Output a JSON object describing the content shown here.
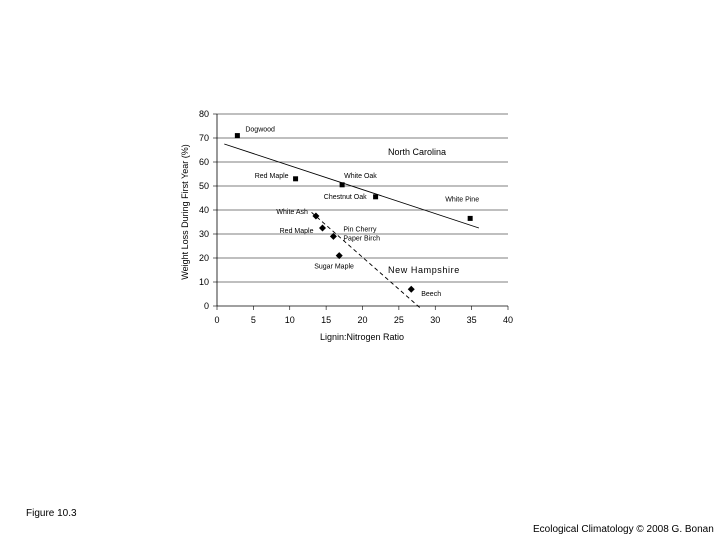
{
  "figure_label": "Figure 10.3",
  "credit": "Ecological Climatology © 2008 G. Bonan",
  "chart_data": {
    "type": "scatter",
    "title": "",
    "xlabel": "Lignin:Nitrogen Ratio",
    "ylabel": "Weight Loss During First Year (%)",
    "xlim": [
      0,
      40
    ],
    "ylim": [
      0,
      80
    ],
    "x_ticks": [
      "0",
      "5",
      "10",
      "15",
      "20",
      "25",
      "30",
      "35",
      "40"
    ],
    "y_ticks": [
      "0",
      "10",
      "20",
      "30",
      "40",
      "50",
      "60",
      "70",
      "80"
    ],
    "grid": "horizontal",
    "series": [
      {
        "name": "North Carolina",
        "marker": "square",
        "points": [
          {
            "x": 2.8,
            "y": 71,
            "label": "Dogwood"
          },
          {
            "x": 10.8,
            "y": 53,
            "label": "Red Maple"
          },
          {
            "x": 17.2,
            "y": 50.5,
            "label": "White Oak"
          },
          {
            "x": 21.8,
            "y": 45.5,
            "label": "Chestnut Oak"
          },
          {
            "x": 34.8,
            "y": 36.5,
            "label": "White Pine"
          }
        ],
        "fit": {
          "style": "solid",
          "x": [
            1,
            36
          ],
          "y": [
            67.5,
            32.5
          ]
        }
      },
      {
        "name": "New Hampshire",
        "marker": "diamond",
        "points": [
          {
            "x": 13.6,
            "y": 37.5,
            "label": "White Ash"
          },
          {
            "x": 14.5,
            "y": 32.5,
            "label": "Red Maple"
          },
          {
            "x": 16,
            "y": 29,
            "label": "Pin Cherry Paper Birch"
          },
          {
            "x": 16.8,
            "y": 21,
            "label": "Sugar Maple"
          },
          {
            "x": 26.7,
            "y": 7,
            "label": "Beech"
          }
        ],
        "fit": {
          "style": "dashed",
          "x": [
            13,
            28
          ],
          "y": [
            39,
            -1
          ]
        }
      }
    ]
  }
}
